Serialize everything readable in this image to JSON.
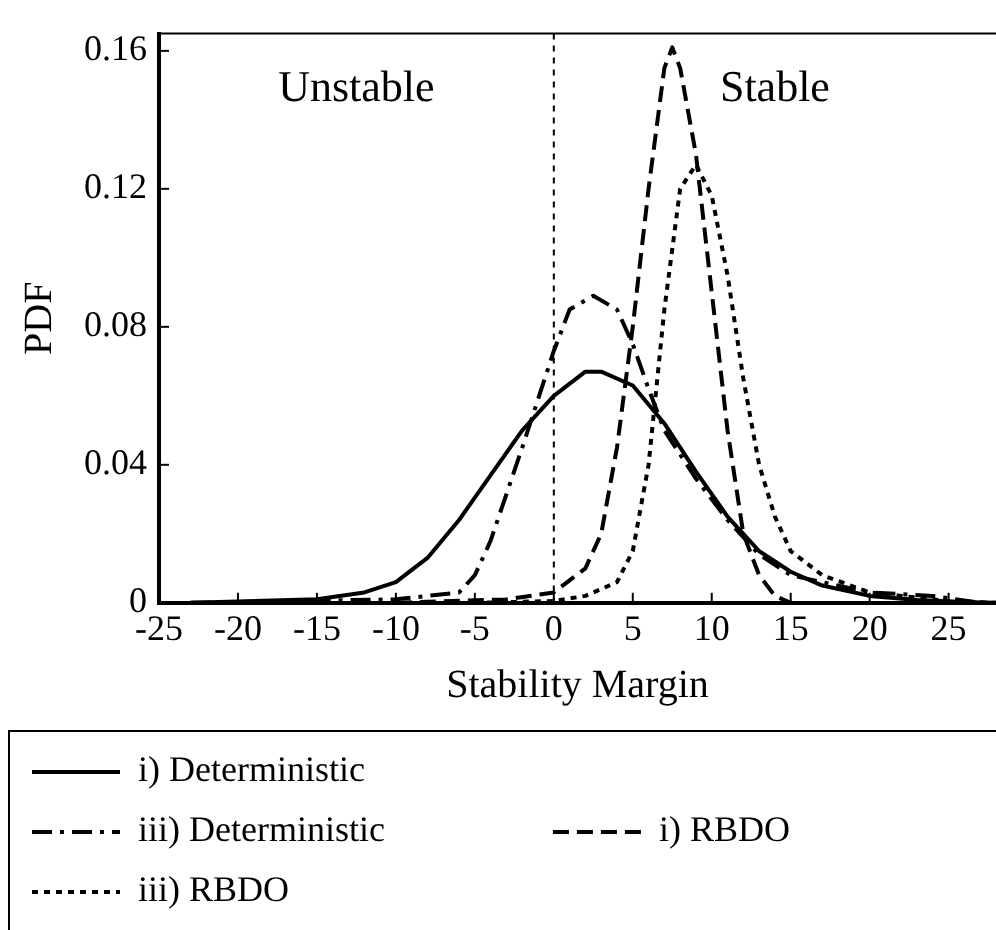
{
  "chart_data": {
    "type": "line",
    "xlabel": "Stability Margin",
    "ylabel": "PDF",
    "xlim": [
      -25,
      28
    ],
    "xticks": [
      -25,
      -20,
      -15,
      -10,
      -5,
      0,
      5,
      10,
      15,
      20,
      25
    ],
    "ylim": [
      0,
      0.165
    ],
    "yticks": [
      0,
      0.04,
      0.08,
      0.12,
      0.16
    ],
    "grid": false,
    "legend": "bottom",
    "marker": "none",
    "ref_lines": [
      {
        "axis": "x",
        "value": 0,
        "line_style": "dotted",
        "color": "#000000"
      }
    ],
    "annotations": [
      "Unstable",
      "Stable"
    ],
    "series": [
      {
        "name": "i) Deterministic",
        "color": "#000000",
        "line_style": "solid",
        "x": [
          -23,
          -15,
          -12,
          -10,
          -8,
          -6,
          -4,
          -2,
          0,
          2,
          3,
          5,
          7,
          9,
          11,
          13,
          15,
          17,
          20,
          23,
          26,
          28
        ],
        "values": [
          0,
          0.001,
          0.003,
          0.006,
          0.013,
          0.024,
          0.037,
          0.05,
          0.06,
          0.067,
          0.067,
          0.063,
          0.052,
          0.038,
          0.025,
          0.015,
          0.009,
          0.005,
          0.002,
          0.0008,
          0.0002,
          0
        ]
      },
      {
        "name": "iii) Deterministic",
        "color": "#000000",
        "line_style": "dashdot",
        "x": [
          -23,
          -10,
          -6,
          -5,
          -4,
          -2,
          0,
          1,
          2.5,
          4,
          5,
          6,
          7,
          9,
          11,
          13,
          15,
          20,
          24,
          27
        ],
        "values": [
          0,
          0.001,
          0.003,
          0.008,
          0.018,
          0.045,
          0.073,
          0.085,
          0.089,
          0.085,
          0.075,
          0.062,
          0.05,
          0.036,
          0.024,
          0.014,
          0.008,
          0.003,
          0.002,
          0
        ]
      },
      {
        "name": "i) RBDO",
        "color": "#000000",
        "line_style": "dashed",
        "x": [
          -10,
          -3,
          0,
          2,
          3,
          4,
          5,
          6,
          7,
          7.5,
          8,
          9,
          10,
          11,
          12,
          13,
          14,
          15
        ],
        "values": [
          0,
          0.001,
          0.003,
          0.01,
          0.02,
          0.045,
          0.08,
          0.12,
          0.155,
          0.161,
          0.155,
          0.13,
          0.09,
          0.05,
          0.02,
          0.008,
          0.002,
          0
        ]
      },
      {
        "name": "iii) RBDO",
        "color": "#000000",
        "line_style": "dotted",
        "x": [
          -5,
          0,
          2,
          4,
          5,
          6,
          7,
          8,
          9,
          10,
          11,
          12,
          13,
          14,
          15,
          17,
          20,
          25,
          28
        ],
        "values": [
          0,
          0.0005,
          0.002,
          0.006,
          0.015,
          0.04,
          0.085,
          0.12,
          0.127,
          0.118,
          0.095,
          0.065,
          0.04,
          0.025,
          0.015,
          0.008,
          0.003,
          0.0005,
          0
        ]
      }
    ]
  }
}
